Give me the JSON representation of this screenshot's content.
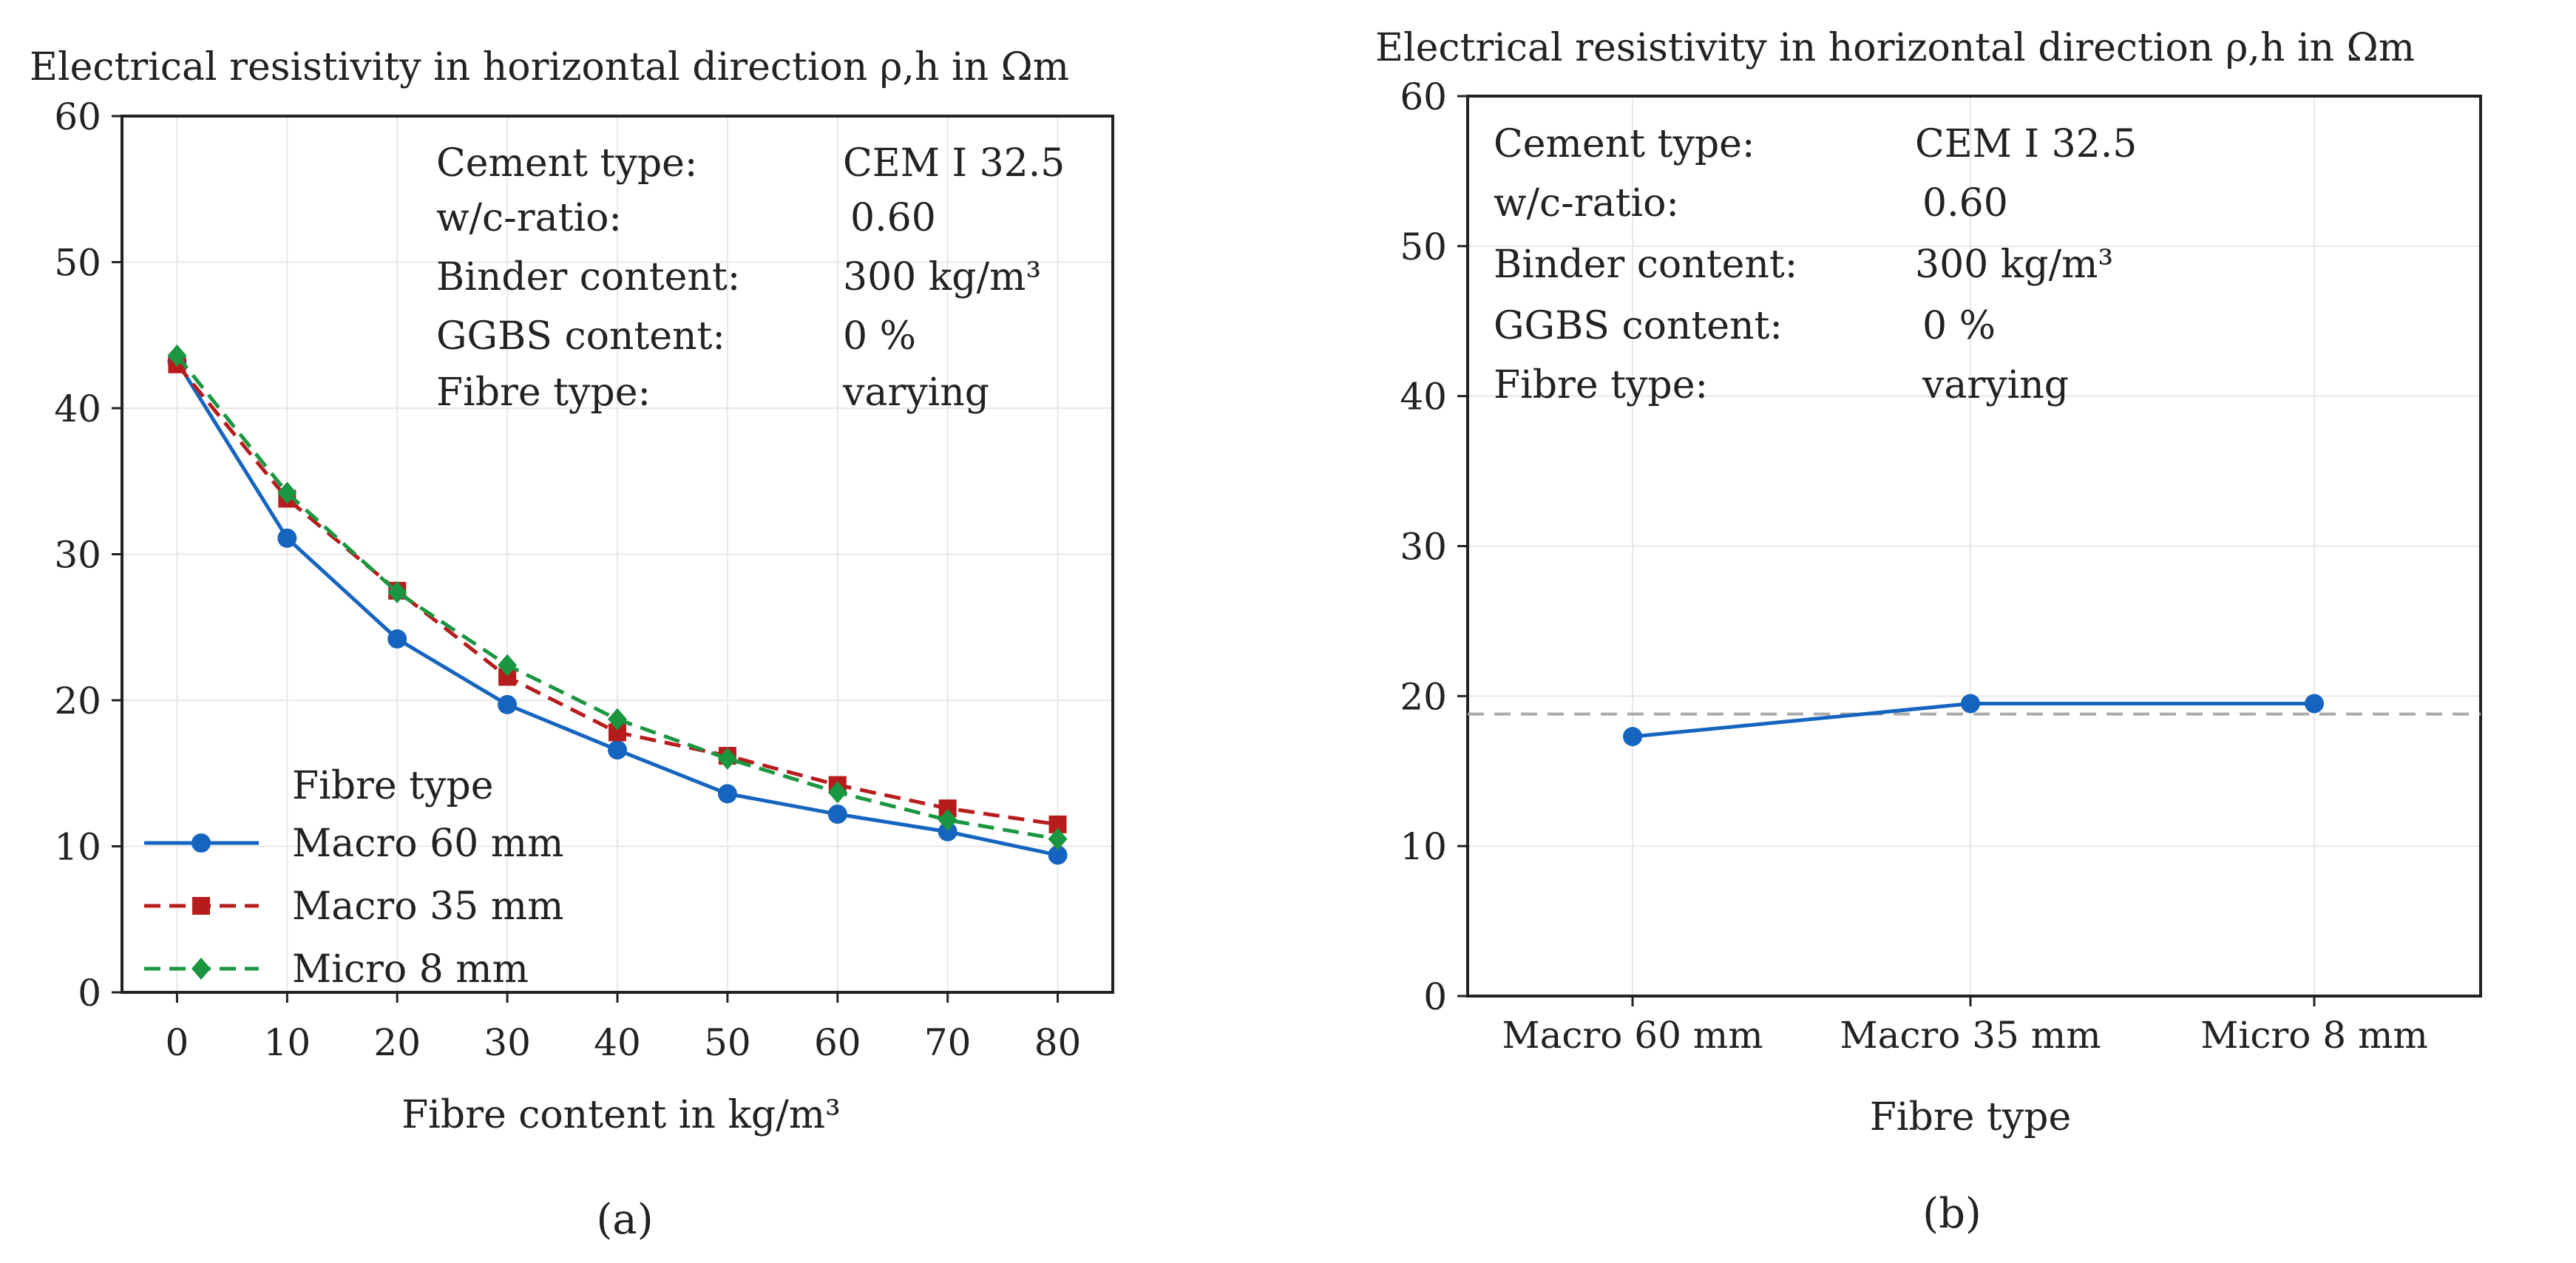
{
  "colors": {
    "macro60": "#1565c0",
    "macro35": "#b71c1c",
    "micro8": "#1a9641",
    "reference": "#aaaaaa",
    "grid": "#e8e8e8",
    "axis": "#222222"
  },
  "info_box": [
    {
      "label": "Cement type:",
      "value": "CEM I 32.5"
    },
    {
      "label": "w/c-ratio:",
      "value": "0.60"
    },
    {
      "label": "Binder content:",
      "value": "300 kg/m³"
    },
    {
      "label": "GGBS content:",
      "value": "0 %"
    },
    {
      "label": "Fibre type:",
      "value": "varying"
    }
  ],
  "chart_data": [
    {
      "panel": "a",
      "type": "line",
      "title": "Electrical resistivity in horizontal direction ρ,h in Ωm",
      "xlabel": "Fibre content in kg/m³",
      "ylabel": "",
      "x": [
        0,
        10,
        20,
        30,
        40,
        50,
        60,
        70,
        80
      ],
      "xlim": [
        -5,
        85
      ],
      "ylim": [
        0,
        60
      ],
      "yticks": [
        0,
        10,
        20,
        30,
        40,
        50,
        60
      ],
      "legend_title": "Fibre type",
      "legend_position": "bottom-left",
      "grid": true,
      "series": [
        {
          "name": "Macro 60 mm",
          "color_key": "macro60",
          "line": "solid",
          "marker": "circle",
          "values": [
            43.2,
            31.1,
            24.2,
            19.7,
            16.6,
            13.6,
            12.2,
            11.0,
            9.4
          ]
        },
        {
          "name": "Macro 35 mm",
          "color_key": "macro35",
          "line": "dashed",
          "marker": "square",
          "values": [
            43.0,
            33.8,
            27.5,
            21.6,
            17.8,
            16.2,
            14.2,
            12.6,
            11.5
          ]
        },
        {
          "name": "Micro 8 mm",
          "color_key": "micro8",
          "line": "dashed",
          "marker": "diamond",
          "values": [
            43.6,
            34.2,
            27.4,
            22.4,
            18.7,
            16.0,
            13.7,
            11.8,
            10.5
          ]
        }
      ]
    },
    {
      "panel": "b",
      "type": "line",
      "title": "Electrical resistivity in horizontal direction ρ,h in Ωm",
      "xlabel": "Fibre type",
      "ylabel": "",
      "categories": [
        "Macro 60 mm",
        "Macro 35 mm",
        "Micro 8 mm"
      ],
      "ylim": [
        0,
        60
      ],
      "yticks": [
        0,
        10,
        20,
        30,
        40,
        50,
        60
      ],
      "grid": true,
      "reference_line": 18.8,
      "series": [
        {
          "name": "ρ,h",
          "color_key": "macro60",
          "line": "solid",
          "marker": "circle",
          "values": [
            17.3,
            19.5,
            19.5
          ]
        }
      ]
    }
  ],
  "panel_labels": [
    "(a)",
    "(b)"
  ]
}
